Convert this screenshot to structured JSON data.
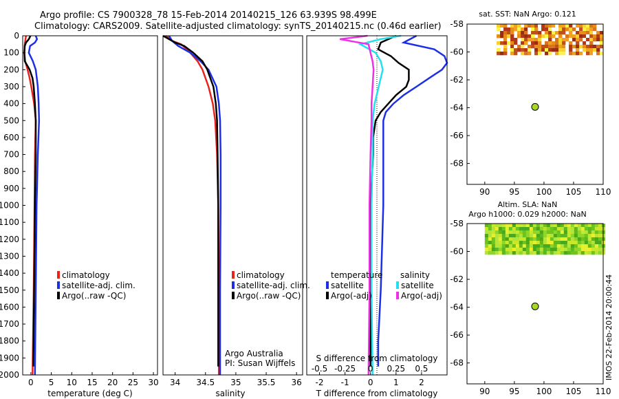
{
  "title": {
    "line1": "Argo profile: CS 7900328_78 15-Feb-2014 20140215_126 63.939S 98.499E",
    "line2": "Climatology: CARS2009. Satellite-adjusted climatology: synTS_20140215.nc (0.46d earlier)"
  },
  "depth_ticks": [
    "0",
    "100",
    "200",
    "300",
    "400",
    "500",
    "600",
    "700",
    "800",
    "900",
    "1000",
    "1100",
    "1200",
    "1300",
    "1400",
    "1500",
    "1600",
    "1700",
    "1800",
    "1900",
    "2000"
  ],
  "colors": {
    "climatology": "#e8231b",
    "satellite": "#1d2fe6",
    "argo": "#000000",
    "sat_salt": "#22e0f0",
    "argo_salt": "#ee30e6",
    "sst_hot": "#c0501a",
    "sla_green": "#6cc41c",
    "marker": "#a6d824"
  },
  "chart_data": [
    {
      "type": "line",
      "name": "temperature",
      "xlabel": "temperature (deg C)",
      "ylabel": "depth",
      "xlim": [
        -2,
        31
      ],
      "ylim": [
        2000,
        0
      ],
      "x_ticks": [
        "0",
        "5",
        "10",
        "15",
        "20",
        "25",
        "30"
      ],
      "legend": [
        "climatology",
        "satellite-adj. clim.",
        "Argo(..raw -QC)"
      ],
      "series": [
        {
          "name": "climatology",
          "depth": [
            0,
            50,
            100,
            150,
            200,
            250,
            300,
            400,
            500,
            700,
            1000,
            1500,
            2000
          ],
          "values": [
            -1.2,
            -1.5,
            -1.6,
            -1.4,
            -0.8,
            -0.3,
            0.1,
            0.8,
            1.2,
            1.0,
            0.9,
            0.7,
            0.4
          ]
        },
        {
          "name": "satellite-adj. clim.",
          "depth": [
            0,
            20,
            40,
            60,
            100,
            150,
            200,
            300,
            400,
            500,
            700,
            1000,
            1500,
            2000
          ],
          "values": [
            1.2,
            1.5,
            1.0,
            -0.2,
            -0.5,
            0.5,
            1.2,
            1.7,
            1.9,
            2.0,
            1.7,
            1.4,
            1.2,
            1.0
          ]
        },
        {
          "name": "Argo(..raw -QC)",
          "depth": [
            0,
            20,
            40,
            60,
            100,
            150,
            200,
            250,
            300,
            400,
            500,
            700,
            1000,
            1500,
            1950
          ],
          "values": [
            -0.1,
            -0.5,
            -1.2,
            -1.5,
            -1.6,
            -1.5,
            -0.3,
            0.4,
            0.7,
            1.0,
            1.2,
            1.2,
            1.0,
            0.8,
            0.6
          ]
        }
      ]
    },
    {
      "type": "line",
      "name": "salinity",
      "xlabel": "salinity",
      "ylabel": "depth",
      "xlim": [
        33.8,
        36.1
      ],
      "ylim": [
        2000,
        0
      ],
      "x_ticks": [
        "34",
        "34.5",
        "35",
        "35.5",
        "36"
      ],
      "legend": [
        "climatology",
        "satellite-adj. clim.",
        "Argo(..raw -QC)"
      ],
      "annotation": [
        "Argo Australia",
        "PI: Susan Wijffels"
      ],
      "series": [
        {
          "name": "climatology",
          "depth": [
            0,
            30,
            50,
            100,
            150,
            200,
            300,
            400,
            500,
            700,
            1000,
            1500,
            2000
          ],
          "values": [
            33.85,
            33.95,
            34.1,
            34.25,
            34.37,
            34.45,
            34.55,
            34.62,
            34.66,
            34.69,
            34.71,
            34.72,
            34.72
          ]
        },
        {
          "name": "satellite-adj. clim.",
          "depth": [
            0,
            30,
            60,
            100,
            150,
            200,
            300,
            400,
            500,
            700,
            1000,
            1500,
            2000
          ],
          "values": [
            33.9,
            33.95,
            34.05,
            34.25,
            34.42,
            34.55,
            34.68,
            34.72,
            34.74,
            34.75,
            34.75,
            34.74,
            34.74
          ]
        },
        {
          "name": "Argo(..raw -QC)",
          "depth": [
            0,
            40,
            60,
            100,
            150,
            200,
            300,
            400,
            500,
            700,
            1000,
            1500,
            1950
          ],
          "values": [
            33.8,
            34.0,
            34.15,
            34.3,
            34.45,
            34.53,
            34.63,
            34.67,
            34.69,
            34.7,
            34.71,
            34.71,
            34.71
          ]
        }
      ]
    },
    {
      "type": "line",
      "name": "difference",
      "xlabel": "T difference from climatology",
      "xlabel2": "S difference from climatology",
      "ylabel": "depth",
      "xlim": [
        -2.5,
        3.0
      ],
      "ylim": [
        2000,
        0
      ],
      "x_ticks": [
        "-2",
        "-1",
        "0",
        "1",
        "2"
      ],
      "top_ticks": [
        "-0.5",
        "-0.25",
        "0",
        "0.25",
        "0.5"
      ],
      "legend_temperature": [
        "temperature",
        "satellite",
        "Argo(-adj)"
      ],
      "legend_salinity": [
        "salinity",
        "satellite",
        "Argo(-adj)"
      ],
      "series": [
        {
          "name": "temperature satellite",
          "depth": [
            0,
            40,
            80,
            120,
            160,
            200,
            250,
            300,
            350,
            400,
            450,
            500,
            600,
            700,
            1000,
            1500,
            1800,
            1950
          ],
          "values": [
            1.8,
            1.3,
            2.5,
            2.9,
            3.0,
            2.8,
            2.3,
            1.8,
            1.3,
            0.9,
            0.6,
            0.5,
            0.5,
            0.5,
            0.5,
            0.4,
            0.3,
            0.3
          ]
        },
        {
          "name": "temperature Argo(-adj)",
          "depth": [
            0,
            40,
            80,
            120,
            160,
            200,
            230,
            260,
            300,
            350,
            400,
            450,
            500,
            550,
            600,
            700,
            1000,
            1500,
            1950
          ],
          "values": [
            1.0,
            0.4,
            0.3,
            0.8,
            1.1,
            1.5,
            1.5,
            1.5,
            1.4,
            1.0,
            0.7,
            0.4,
            0.2,
            0.15,
            0.1,
            0.1,
            0.0,
            0.0,
            0.0
          ]
        },
        {
          "name": "salinity satellite",
          "depth": [
            0,
            20,
            50,
            100,
            150,
            200,
            300,
            400,
            500,
            700,
            1000,
            1500,
            2000
          ],
          "values": [
            0.3,
            0.1,
            -0.1,
            0.05,
            0.1,
            0.12,
            0.08,
            0.04,
            0.02,
            0.02,
            0.01,
            0.01,
            0.02
          ]
        },
        {
          "name": "salinity Argo(-adj)",
          "depth": [
            0,
            20,
            50,
            100,
            150,
            200,
            300,
            400,
            500,
            700,
            1000,
            1500,
            2000
          ],
          "values": [
            -0.03,
            -0.3,
            -0.02,
            0.0,
            0.02,
            0.03,
            0.02,
            0.01,
            0.01,
            0.0,
            -0.01,
            -0.01,
            -0.02
          ]
        }
      ]
    },
    {
      "type": "heatmap",
      "name": "sst_map",
      "title": "sat. SST: NaN Argo: 0.121",
      "xlim": [
        87,
        110
      ],
      "ylim": [
        -69.5,
        -58
      ],
      "x_ticks": [
        "90",
        "95",
        "100",
        "105",
        "110"
      ],
      "y_ticks": [
        "-58",
        "-60",
        "-62",
        "-64",
        "-66",
        "-68"
      ],
      "data_extent": {
        "lon": [
          92,
          110
        ],
        "lat": [
          -60.2,
          -58
        ]
      },
      "argo_point": {
        "lon": 98.5,
        "lat": -63.94
      }
    },
    {
      "type": "heatmap",
      "name": "sla_map",
      "title": "Altim. SLA: NaN",
      "subtitle": "Argo h1000: 0.029 h2000: NaN",
      "xlim": [
        87,
        110
      ],
      "ylim": [
        -69.5,
        -58
      ],
      "x_ticks": [
        "90",
        "95",
        "100",
        "105",
        "110"
      ],
      "y_ticks": [
        "-58",
        "-60",
        "-62",
        "-64",
        "-66",
        "-68"
      ],
      "data_extent": {
        "lon": [
          90,
          110
        ],
        "lat": [
          -60.2,
          -58
        ]
      },
      "argo_point": {
        "lon": 98.5,
        "lat": -63.94
      }
    }
  ],
  "stamp": "IMOS 22-Feb-2014 20:00:44"
}
